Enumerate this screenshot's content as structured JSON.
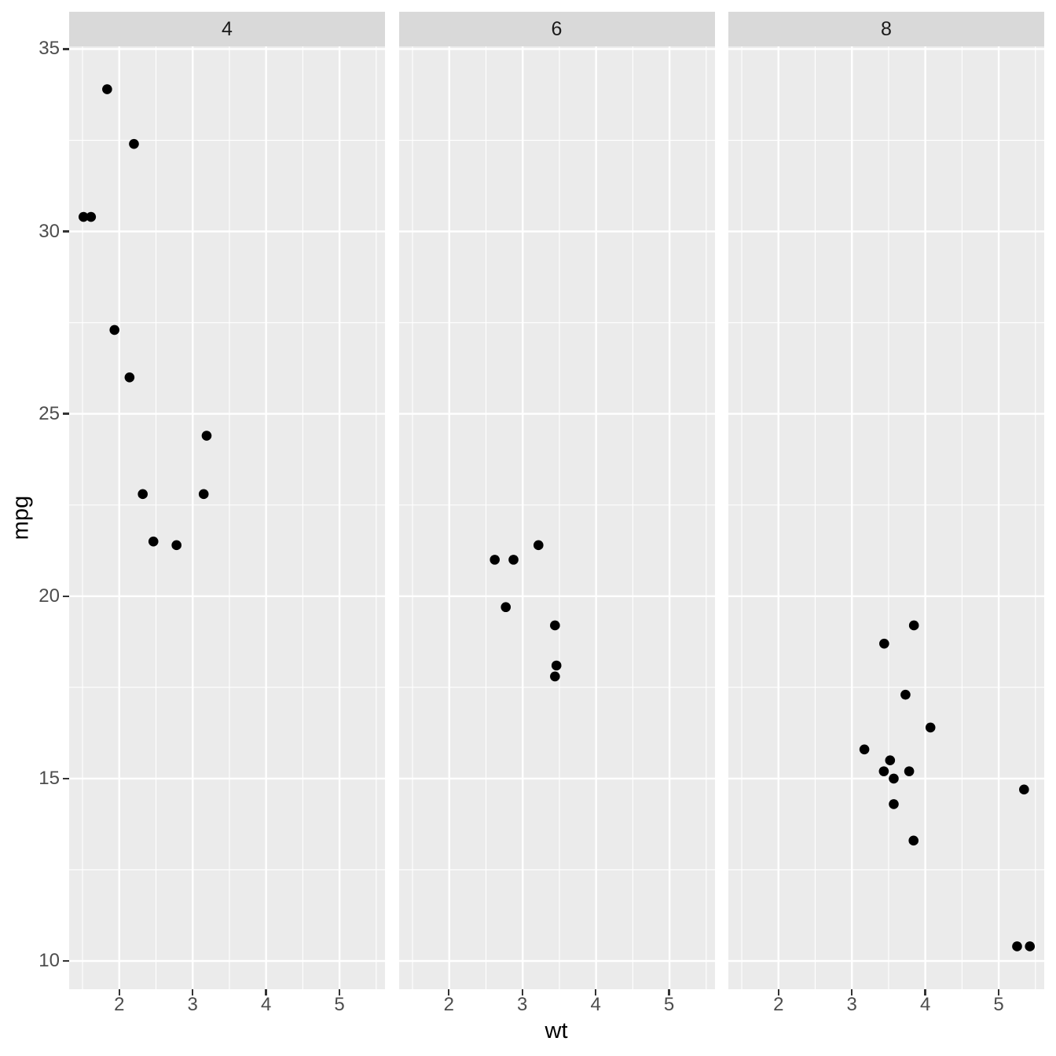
{
  "chart_data": {
    "type": "scatter",
    "title": "",
    "xlabel": "wt",
    "ylabel": "mpg",
    "legend_position": "none",
    "grid": "on",
    "xlim": [
      1.3174,
      5.6196
    ],
    "ylim": [
      9.225,
      35.075
    ],
    "x_ticks": [
      2,
      3,
      4,
      5
    ],
    "x_minor_ticks": [
      1.5,
      2.5,
      3.5,
      4.5,
      5.5
    ],
    "y_ticks": [
      10,
      15,
      20,
      25,
      30,
      35
    ],
    "y_minor_ticks": [
      12.5,
      17.5,
      22.5,
      27.5,
      32.5
    ],
    "facets": [
      {
        "label": "4",
        "points": [
          {
            "wt": 2.32,
            "mpg": 22.8
          },
          {
            "wt": 3.19,
            "mpg": 24.4
          },
          {
            "wt": 3.15,
            "mpg": 22.8
          },
          {
            "wt": 2.2,
            "mpg": 32.4
          },
          {
            "wt": 1.615,
            "mpg": 30.4
          },
          {
            "wt": 1.835,
            "mpg": 33.9
          },
          {
            "wt": 2.465,
            "mpg": 21.5
          },
          {
            "wt": 1.935,
            "mpg": 27.3
          },
          {
            "wt": 2.14,
            "mpg": 26.0
          },
          {
            "wt": 1.513,
            "mpg": 30.4
          },
          {
            "wt": 2.78,
            "mpg": 21.4
          }
        ]
      },
      {
        "label": "6",
        "points": [
          {
            "wt": 2.62,
            "mpg": 21.0
          },
          {
            "wt": 2.875,
            "mpg": 21.0
          },
          {
            "wt": 3.215,
            "mpg": 21.4
          },
          {
            "wt": 3.46,
            "mpg": 18.1
          },
          {
            "wt": 3.44,
            "mpg": 19.2
          },
          {
            "wt": 3.44,
            "mpg": 17.8
          },
          {
            "wt": 2.77,
            "mpg": 19.7
          }
        ]
      },
      {
        "label": "8",
        "points": [
          {
            "wt": 3.44,
            "mpg": 18.7
          },
          {
            "wt": 3.57,
            "mpg": 14.3
          },
          {
            "wt": 4.07,
            "mpg": 16.4
          },
          {
            "wt": 3.73,
            "mpg": 17.3
          },
          {
            "wt": 3.78,
            "mpg": 15.2
          },
          {
            "wt": 5.25,
            "mpg": 10.4
          },
          {
            "wt": 5.424,
            "mpg": 10.4
          },
          {
            "wt": 5.345,
            "mpg": 14.7
          },
          {
            "wt": 3.52,
            "mpg": 15.5
          },
          {
            "wt": 3.435,
            "mpg": 15.2
          },
          {
            "wt": 3.84,
            "mpg": 13.3
          },
          {
            "wt": 3.845,
            "mpg": 19.2
          },
          {
            "wt": 3.17,
            "mpg": 15.8
          },
          {
            "wt": 3.57,
            "mpg": 15.0
          }
        ]
      }
    ],
    "style": {
      "panel_bg": "#EBEBEB",
      "strip_bg": "#D9D9D9",
      "grid_color": "#FFFFFF",
      "point_color": "#000000",
      "axis_text_color": "#4D4D4D",
      "tick_color": "#333333",
      "strip_text_color": "#1A1A1A",
      "title_color": "#000000",
      "figure_bg": "#FFFFFF"
    }
  }
}
